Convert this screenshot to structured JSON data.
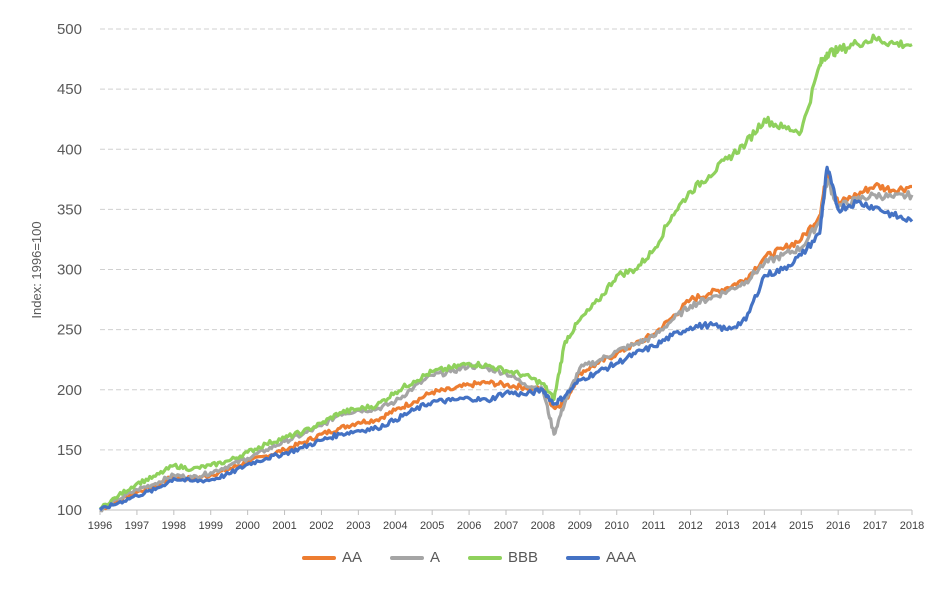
{
  "chart_data": {
    "type": "line",
    "ylabel": "Index: 1996=100",
    "xlabel": "",
    "ylim": [
      100,
      500
    ],
    "yticks": [
      "100",
      "150",
      "200",
      "250",
      "300",
      "350",
      "400",
      "450",
      "500"
    ],
    "xlim": [
      1996,
      2018
    ],
    "xticks": [
      "1996",
      "1997",
      "1998",
      "1999",
      "2000",
      "2001",
      "2002",
      "2003",
      "2004",
      "2005",
      "2006",
      "2007",
      "2008",
      "2009",
      "2010",
      "2011",
      "2012",
      "2013",
      "2014",
      "2015",
      "2016",
      "2017",
      "2018"
    ],
    "grid": "horizontal-dashed",
    "legend_position": "bottom",
    "x": [
      1996.0,
      1996.5,
      1997.0,
      1997.5,
      1998.0,
      1998.5,
      1999.0,
      1999.5,
      2000.0,
      2000.5,
      2001.0,
      2001.5,
      2002.0,
      2002.5,
      2003.0,
      2003.5,
      2004.0,
      2004.5,
      2005.0,
      2005.5,
      2006.0,
      2006.5,
      2007.0,
      2007.5,
      2008.0,
      2008.3,
      2008.6,
      2009.0,
      2009.5,
      2010.0,
      2010.5,
      2011.0,
      2011.5,
      2012.0,
      2012.5,
      2013.0,
      2013.5,
      2014.0,
      2014.5,
      2015.0,
      2015.5,
      2015.7,
      2016.0,
      2016.5,
      2017.0,
      2017.5,
      2018.0
    ],
    "series": [
      {
        "name": "AA",
        "color": "#ED7D31",
        "values": [
          100,
          108,
          115,
          120,
          128,
          126,
          129,
          134,
          140,
          145,
          150,
          156,
          163,
          168,
          173,
          175,
          183,
          190,
          198,
          200,
          204,
          206,
          204,
          202,
          200,
          185,
          190,
          214,
          222,
          230,
          238,
          246,
          260,
          275,
          280,
          285,
          292,
          310,
          317,
          325,
          345,
          380,
          355,
          362,
          370,
          366,
          369
        ]
      },
      {
        "name": "A",
        "color": "#A5A5A5",
        "values": [
          100,
          109,
          117,
          122,
          129,
          127,
          131,
          137,
          143,
          150,
          157,
          163,
          170,
          180,
          183,
          184,
          190,
          202,
          212,
          215,
          220,
          218,
          214,
          205,
          200,
          163,
          190,
          218,
          224,
          232,
          238,
          244,
          258,
          270,
          276,
          282,
          290,
          305,
          312,
          318,
          340,
          375,
          352,
          358,
          362,
          360,
          362
        ]
      },
      {
        "name": "BBB",
        "color": "#8FD15C",
        "values": [
          101,
          112,
          122,
          128,
          137,
          134,
          137,
          141,
          148,
          155,
          160,
          165,
          172,
          181,
          184,
          187,
          198,
          207,
          215,
          218,
          222,
          220,
          216,
          212,
          205,
          192,
          240,
          258,
          274,
          295,
          300,
          316,
          345,
          365,
          378,
          392,
          405,
          425,
          418,
          415,
          470,
          480,
          482,
          488,
          492,
          488,
          487
        ]
      },
      {
        "name": "AAA",
        "color": "#4472C4",
        "values": [
          100,
          106,
          112,
          117,
          126,
          124,
          125,
          130,
          138,
          143,
          147,
          152,
          158,
          163,
          166,
          168,
          175,
          183,
          190,
          191,
          193,
          191,
          198,
          196,
          200,
          188,
          195,
          208,
          215,
          222,
          230,
          236,
          245,
          252,
          254,
          250,
          258,
          295,
          300,
          312,
          330,
          385,
          350,
          356,
          352,
          345,
          340
        ]
      }
    ]
  }
}
